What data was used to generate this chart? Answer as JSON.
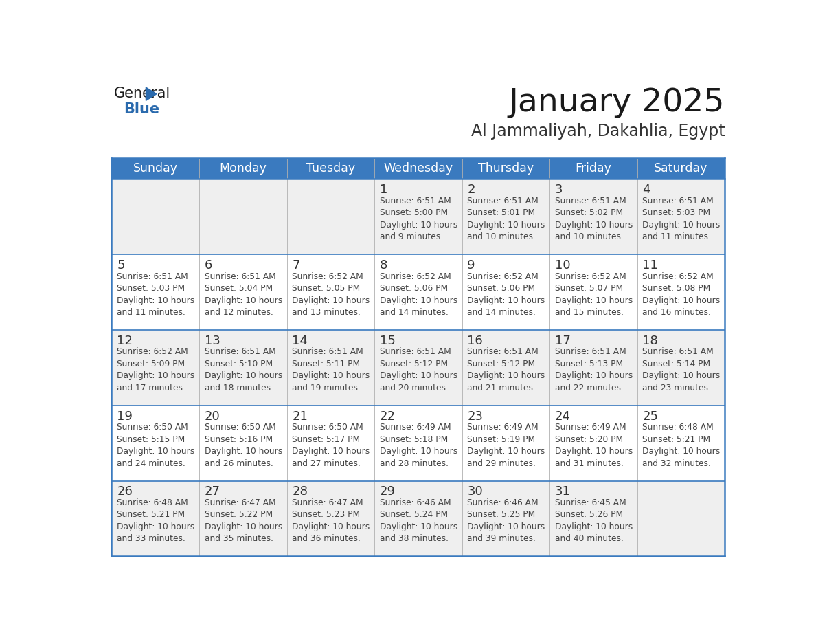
{
  "title": "January 2025",
  "subtitle": "Al Jammaliyah, Dakahlia, Egypt",
  "days_of_week": [
    "Sunday",
    "Monday",
    "Tuesday",
    "Wednesday",
    "Thursday",
    "Friday",
    "Saturday"
  ],
  "header_bg": "#3a7abf",
  "header_text": "#ffffff",
  "row_bg_odd": "#efefef",
  "row_bg_even": "#ffffff",
  "cell_text_color": "#444444",
  "day_num_color": "#333333",
  "grid_line_color": "#3a7abf",
  "title_color": "#1a1a1a",
  "subtitle_color": "#333333",
  "calendar_data": [
    [
      {
        "day": null
      },
      {
        "day": null
      },
      {
        "day": null
      },
      {
        "day": 1,
        "sunrise": "6:51 AM",
        "sunset": "5:00 PM",
        "daylight": "10 hours and 9 minutes."
      },
      {
        "day": 2,
        "sunrise": "6:51 AM",
        "sunset": "5:01 PM",
        "daylight": "10 hours and 10 minutes."
      },
      {
        "day": 3,
        "sunrise": "6:51 AM",
        "sunset": "5:02 PM",
        "daylight": "10 hours and 10 minutes."
      },
      {
        "day": 4,
        "sunrise": "6:51 AM",
        "sunset": "5:03 PM",
        "daylight": "10 hours and 11 minutes."
      }
    ],
    [
      {
        "day": 5,
        "sunrise": "6:51 AM",
        "sunset": "5:03 PM",
        "daylight": "10 hours and 11 minutes."
      },
      {
        "day": 6,
        "sunrise": "6:51 AM",
        "sunset": "5:04 PM",
        "daylight": "10 hours and 12 minutes."
      },
      {
        "day": 7,
        "sunrise": "6:52 AM",
        "sunset": "5:05 PM",
        "daylight": "10 hours and 13 minutes."
      },
      {
        "day": 8,
        "sunrise": "6:52 AM",
        "sunset": "5:06 PM",
        "daylight": "10 hours and 14 minutes."
      },
      {
        "day": 9,
        "sunrise": "6:52 AM",
        "sunset": "5:06 PM",
        "daylight": "10 hours and 14 minutes."
      },
      {
        "day": 10,
        "sunrise": "6:52 AM",
        "sunset": "5:07 PM",
        "daylight": "10 hours and 15 minutes."
      },
      {
        "day": 11,
        "sunrise": "6:52 AM",
        "sunset": "5:08 PM",
        "daylight": "10 hours and 16 minutes."
      }
    ],
    [
      {
        "day": 12,
        "sunrise": "6:52 AM",
        "sunset": "5:09 PM",
        "daylight": "10 hours and 17 minutes."
      },
      {
        "day": 13,
        "sunrise": "6:51 AM",
        "sunset": "5:10 PM",
        "daylight": "10 hours and 18 minutes."
      },
      {
        "day": 14,
        "sunrise": "6:51 AM",
        "sunset": "5:11 PM",
        "daylight": "10 hours and 19 minutes."
      },
      {
        "day": 15,
        "sunrise": "6:51 AM",
        "sunset": "5:12 PM",
        "daylight": "10 hours and 20 minutes."
      },
      {
        "day": 16,
        "sunrise": "6:51 AM",
        "sunset": "5:12 PM",
        "daylight": "10 hours and 21 minutes."
      },
      {
        "day": 17,
        "sunrise": "6:51 AM",
        "sunset": "5:13 PM",
        "daylight": "10 hours and 22 minutes."
      },
      {
        "day": 18,
        "sunrise": "6:51 AM",
        "sunset": "5:14 PM",
        "daylight": "10 hours and 23 minutes."
      }
    ],
    [
      {
        "day": 19,
        "sunrise": "6:50 AM",
        "sunset": "5:15 PM",
        "daylight": "10 hours and 24 minutes."
      },
      {
        "day": 20,
        "sunrise": "6:50 AM",
        "sunset": "5:16 PM",
        "daylight": "10 hours and 26 minutes."
      },
      {
        "day": 21,
        "sunrise": "6:50 AM",
        "sunset": "5:17 PM",
        "daylight": "10 hours and 27 minutes."
      },
      {
        "day": 22,
        "sunrise": "6:49 AM",
        "sunset": "5:18 PM",
        "daylight": "10 hours and 28 minutes."
      },
      {
        "day": 23,
        "sunrise": "6:49 AM",
        "sunset": "5:19 PM",
        "daylight": "10 hours and 29 minutes."
      },
      {
        "day": 24,
        "sunrise": "6:49 AM",
        "sunset": "5:20 PM",
        "daylight": "10 hours and 31 minutes."
      },
      {
        "day": 25,
        "sunrise": "6:48 AM",
        "sunset": "5:21 PM",
        "daylight": "10 hours and 32 minutes."
      }
    ],
    [
      {
        "day": 26,
        "sunrise": "6:48 AM",
        "sunset": "5:21 PM",
        "daylight": "10 hours and 33 minutes."
      },
      {
        "day": 27,
        "sunrise": "6:47 AM",
        "sunset": "5:22 PM",
        "daylight": "10 hours and 35 minutes."
      },
      {
        "day": 28,
        "sunrise": "6:47 AM",
        "sunset": "5:23 PM",
        "daylight": "10 hours and 36 minutes."
      },
      {
        "day": 29,
        "sunrise": "6:46 AM",
        "sunset": "5:24 PM",
        "daylight": "10 hours and 38 minutes."
      },
      {
        "day": 30,
        "sunrise": "6:46 AM",
        "sunset": "5:25 PM",
        "daylight": "10 hours and 39 minutes."
      },
      {
        "day": 31,
        "sunrise": "6:45 AM",
        "sunset": "5:26 PM",
        "daylight": "10 hours and 40 minutes."
      },
      {
        "day": null
      }
    ]
  ],
  "logo_general_color": "#1a1a1a",
  "logo_blue_color": "#2a6aad",
  "logo_triangle_color": "#2a6aad"
}
